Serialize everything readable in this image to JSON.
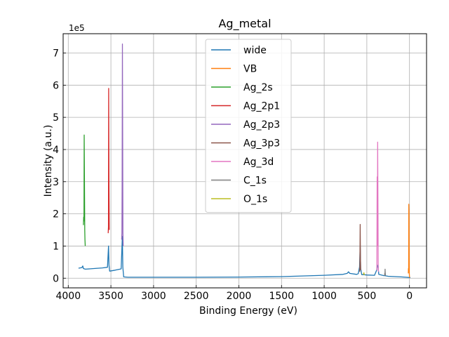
{
  "chart_data": {
    "type": "line",
    "title": "Ag_metal",
    "xlabel": "Binding Energy (eV)",
    "ylabel": "Intensity (a.u.)",
    "y_multiplier_label": "1e5",
    "xlim": [
      4060,
      -200
    ],
    "ylim": [
      -30000,
      760000
    ],
    "x_ticks": [
      4000,
      3500,
      3000,
      2500,
      2000,
      1500,
      1000,
      500,
      0
    ],
    "y_ticks": [
      0,
      100000,
      200000,
      300000,
      400000,
      500000,
      600000,
      700000
    ],
    "x_tick_labels": [
      "4000",
      "3500",
      "3000",
      "2500",
      "2000",
      "1500",
      "1000",
      "500",
      "0"
    ],
    "y_tick_labels": [
      "0",
      "1",
      "2",
      "3",
      "4",
      "5",
      "6",
      "7"
    ],
    "grid": true,
    "legend_position": "top-center",
    "series": [
      {
        "name": "wide",
        "color": "#1f77b4",
        "points": [
          [
            3880,
            31000
          ],
          [
            3840,
            33000
          ],
          [
            3830,
            38000
          ],
          [
            3822,
            30000
          ],
          [
            3800,
            28000
          ],
          [
            3700,
            30000
          ],
          [
            3600,
            32000
          ],
          [
            3540,
            34000
          ],
          [
            3528,
            100000
          ],
          [
            3522,
            40000
          ],
          [
            3515,
            22000
          ],
          [
            3450,
            25000
          ],
          [
            3380,
            29000
          ],
          [
            3366,
            130000
          ],
          [
            3360,
            34000
          ],
          [
            3350,
            4000
          ],
          [
            3300,
            3000
          ],
          [
            3000,
            3000
          ],
          [
            2500,
            3000
          ],
          [
            2000,
            3500
          ],
          [
            1500,
            5000
          ],
          [
            1000,
            9000
          ],
          [
            780,
            12000
          ],
          [
            730,
            15000
          ],
          [
            715,
            20000
          ],
          [
            700,
            15000
          ],
          [
            620,
            12000
          ],
          [
            600,
            14000
          ],
          [
            585,
            35000
          ],
          [
            578,
            100000
          ],
          [
            572,
            30000
          ],
          [
            560,
            11000
          ],
          [
            540,
            11000
          ],
          [
            500,
            10000
          ],
          [
            410,
            9000
          ],
          [
            385,
            25000
          ],
          [
            375,
            40000
          ],
          [
            368,
            38000
          ],
          [
            360,
            12000
          ],
          [
            300,
            8000
          ],
          [
            290,
            8000
          ],
          [
            250,
            6000
          ],
          [
            100,
            4000
          ],
          [
            40,
            3000
          ],
          [
            0,
            2000
          ],
          [
            -10,
            2000
          ]
        ]
      },
      {
        "name": "VB",
        "color": "#ff7f0e",
        "points": [
          [
            14,
            15000
          ],
          [
            12,
            30000
          ],
          [
            10,
            25000
          ],
          [
            8,
            230000
          ],
          [
            6,
            200000
          ],
          [
            4,
            70000
          ],
          [
            2,
            15000
          ],
          [
            0,
            3000
          ],
          [
            -2,
            2000
          ]
        ]
      },
      {
        "name": "Ag_2s",
        "color": "#2ca02c",
        "points": [
          [
            3822,
            165000
          ],
          [
            3819,
            190000
          ],
          [
            3816,
            178000
          ],
          [
            3813,
            445000
          ],
          [
            3810,
            300000
          ],
          [
            3807,
            150000
          ],
          [
            3804,
            120000
          ],
          [
            3801,
            100000
          ]
        ]
      },
      {
        "name": "Ag_2p1",
        "color": "#d62728",
        "points": [
          [
            3532,
            140000
          ],
          [
            3529,
            160000
          ],
          [
            3526,
            590000
          ],
          [
            3523,
            300000
          ],
          [
            3520,
            150000
          ]
        ]
      },
      {
        "name": "Ag_2p3",
        "color": "#9467bd",
        "points": [
          [
            3374,
            120000
          ],
          [
            3371,
            140000
          ],
          [
            3368,
            300000
          ],
          [
            3365,
            728000
          ],
          [
            3362,
            400000
          ],
          [
            3359,
            140000
          ],
          [
            3356,
            100000
          ]
        ]
      },
      {
        "name": "Ag_3p3",
        "color": "#8c564b",
        "points": [
          [
            584,
            20000
          ],
          [
            581,
            40000
          ],
          [
            578,
            167000
          ],
          [
            575,
            60000
          ],
          [
            572,
            25000
          ]
        ]
      },
      {
        "name": "Ag_3d",
        "color": "#e377c2",
        "points": [
          [
            382,
            25000
          ],
          [
            379,
            315000
          ],
          [
            376,
            100000
          ],
          [
            373,
            423000
          ],
          [
            370,
            250000
          ],
          [
            367,
            40000
          ],
          [
            364,
            20000
          ]
        ]
      },
      {
        "name": "C_1s",
        "color": "#7f7f7f",
        "points": [
          [
            292,
            8000
          ],
          [
            290,
            15000
          ],
          [
            288,
            12000
          ],
          [
            286,
            28000
          ],
          [
            284,
            18000
          ],
          [
            282,
            8000
          ]
        ]
      },
      {
        "name": "O_1s",
        "color": "#bcbd22",
        "points": [
          [
            540,
            12000
          ],
          [
            537,
            15000
          ],
          [
            534,
            17000
          ],
          [
            531,
            12000
          ],
          [
            528,
            10000
          ]
        ]
      }
    ]
  }
}
